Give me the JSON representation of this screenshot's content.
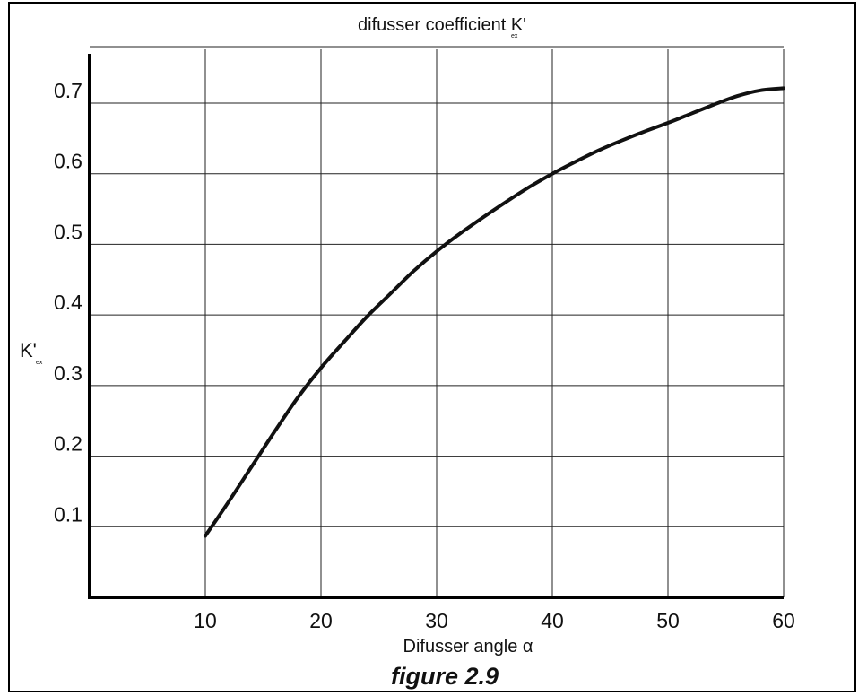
{
  "chart_data": {
    "type": "line",
    "title": "difusser coefficient K'",
    "title_subscript": "ex",
    "xlabel": "Difusser angle α",
    "ylabel": "K'",
    "ylabel_subscript": "ex",
    "caption": "figure 2.9",
    "xlim": [
      0,
      60
    ],
    "ylim": [
      0,
      0.78
    ],
    "x_ticks": [
      10,
      20,
      30,
      40,
      50,
      60
    ],
    "x_tick_labels": [
      "10",
      "20",
      "30",
      "40",
      "50",
      "60"
    ],
    "y_ticks": [
      0.1,
      0.2,
      0.3,
      0.4,
      0.5,
      0.6,
      0.7
    ],
    "y_tick_labels": [
      "0.1",
      "0.2",
      "0.3",
      "0.4",
      "0.5",
      "0.6",
      "0.7"
    ],
    "grid": true,
    "series": [
      {
        "x": [
          10,
          12,
          14,
          16,
          18,
          20,
          22,
          24,
          26,
          28,
          30,
          32,
          34,
          36,
          38,
          40,
          42,
          44,
          46,
          48,
          50,
          52,
          54,
          56,
          58,
          60
        ],
        "y": [
          0.087,
          0.135,
          0.185,
          0.235,
          0.283,
          0.325,
          0.362,
          0.398,
          0.43,
          0.462,
          0.49,
          0.515,
          0.538,
          0.56,
          0.581,
          0.6,
          0.617,
          0.633,
          0.647,
          0.66,
          0.672,
          0.685,
          0.698,
          0.71,
          0.718,
          0.721
        ]
      }
    ],
    "colors": {
      "line": "#111111",
      "grid": "#222222",
      "axis": "#000000"
    }
  }
}
